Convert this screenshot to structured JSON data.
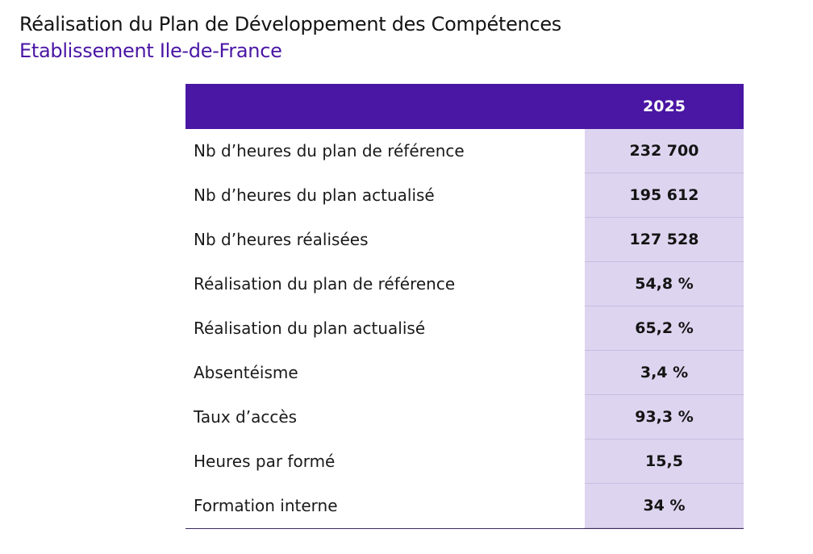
{
  "header": {
    "title": "Réalisation du Plan de Développement des Compétences",
    "subtitle": "Etablissement Ile-de-France"
  },
  "table": {
    "column_header": "2025",
    "rows": [
      {
        "label": "Nb d’heures du plan de référence",
        "value": "232 700"
      },
      {
        "label": "Nb d’heures du plan actualisé",
        "value": "195 612"
      },
      {
        "label": "Nb d’heures réalisées",
        "value": "127 528"
      },
      {
        "label": "Réalisation du plan de référence",
        "value": "54,8 %"
      },
      {
        "label": "Réalisation du plan actualisé",
        "value": "65,2 %"
      },
      {
        "label": "Absentéisme",
        "value": "3,4 %"
      },
      {
        "label": "Taux d’accès",
        "value": "93,3 %"
      },
      {
        "label": "Heures par formé",
        "value": "15,5"
      },
      {
        "label": "Formation interne",
        "value": "34 %"
      }
    ]
  },
  "colors": {
    "accent": "#4a16a4",
    "value_cell_bg": "#ddd5f0"
  }
}
